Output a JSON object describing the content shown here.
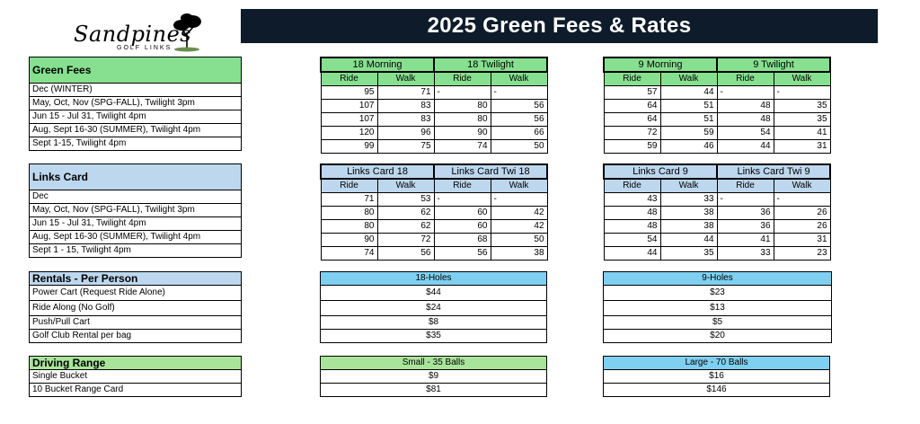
{
  "logo": {
    "script": "Sandpines",
    "sub": "GOLF LINKS"
  },
  "title": "2025 Green Fees & Rates",
  "green_fees": {
    "header": "Green Fees",
    "rows": [
      "Dec (WINTER)",
      "May, Oct, Nov (SPG-FALL), Twilight 3pm",
      "Jun 15 - Jul 31, Twilight 4pm",
      "Aug, Sept 16-30 (SUMMER), Twilight 4pm",
      "Sept 1-15, Twilight 4pm"
    ],
    "t18": {
      "groups": [
        "18 Morning",
        "18 Twilight"
      ],
      "subs": [
        "Ride",
        "Walk",
        "Ride",
        "Walk"
      ],
      "data": [
        [
          "95",
          "71",
          "-",
          "-"
        ],
        [
          "107",
          "83",
          "80",
          "56"
        ],
        [
          "107",
          "83",
          "80",
          "56"
        ],
        [
          "120",
          "96",
          "90",
          "66"
        ],
        [
          "99",
          "75",
          "74",
          "50"
        ]
      ]
    },
    "t9": {
      "groups": [
        "9 Morning",
        "9 Twilight"
      ],
      "subs": [
        "Ride",
        "Walk",
        "Ride",
        "Walk"
      ],
      "data": [
        [
          "57",
          "44",
          "-",
          "-"
        ],
        [
          "64",
          "51",
          "48",
          "35"
        ],
        [
          "64",
          "51",
          "48",
          "35"
        ],
        [
          "72",
          "59",
          "54",
          "41"
        ],
        [
          "59",
          "46",
          "44",
          "31"
        ]
      ]
    }
  },
  "links_card": {
    "header": "Links Card",
    "rows": [
      "Dec",
      "May, Oct, Nov (SPG-FALL), Twilight 3pm",
      "Jun 15 - Jul 31, Twilight 4pm",
      "Aug, Sept 16-30 (SUMMER), Twilight 4pm",
      "Sept 1 - 15, Twilight 4pm"
    ],
    "t18": {
      "groups": [
        "Links Card 18",
        "Links Card  Twi 18"
      ],
      "subs": [
        "Ride",
        "Walk",
        "Ride",
        "Walk"
      ],
      "data": [
        [
          "71",
          "53",
          "-",
          "-"
        ],
        [
          "80",
          "62",
          "60",
          "42"
        ],
        [
          "80",
          "62",
          "60",
          "42"
        ],
        [
          "90",
          "72",
          "68",
          "50"
        ],
        [
          "74",
          "56",
          "56",
          "38"
        ]
      ]
    },
    "t9": {
      "groups": [
        "Links Card 9",
        "Links Card  Twi 9"
      ],
      "subs": [
        "Ride",
        "Walk",
        "Ride",
        "Walk"
      ],
      "data": [
        [
          "43",
          "33",
          "-",
          "-"
        ],
        [
          "48",
          "38",
          "36",
          "26"
        ],
        [
          "48",
          "38",
          "36",
          "26"
        ],
        [
          "54",
          "44",
          "41",
          "31"
        ],
        [
          "44",
          "35",
          "33",
          "23"
        ]
      ]
    }
  },
  "rentals": {
    "header": "Rentals - Per Person",
    "rows": [
      "Power Cart (Request Ride Alone)",
      "Ride Along (No Golf)",
      "Push/Pull Cart",
      "Golf Club Rental per bag"
    ],
    "h18": "18-Holes",
    "v18": [
      "$44",
      "$24",
      "$8",
      "$35"
    ],
    "h9": "9-Holes",
    "v9": [
      "$23",
      "$13",
      "$5",
      "$20"
    ]
  },
  "range": {
    "header": "Driving Range",
    "rows": [
      "Single Bucket",
      "10 Bucket Range Card"
    ],
    "hs": "Small - 35 Balls",
    "vs": [
      "$9",
      "$81"
    ],
    "hl": "Large - 70 Balls",
    "vl": [
      "$16",
      "$146"
    ]
  },
  "colors": {
    "title_bg": "#0d1b2a",
    "green": "#86e08f",
    "blue": "#bdd7ee",
    "sky": "#7fd0f0",
    "light_green": "#a9e49b"
  }
}
